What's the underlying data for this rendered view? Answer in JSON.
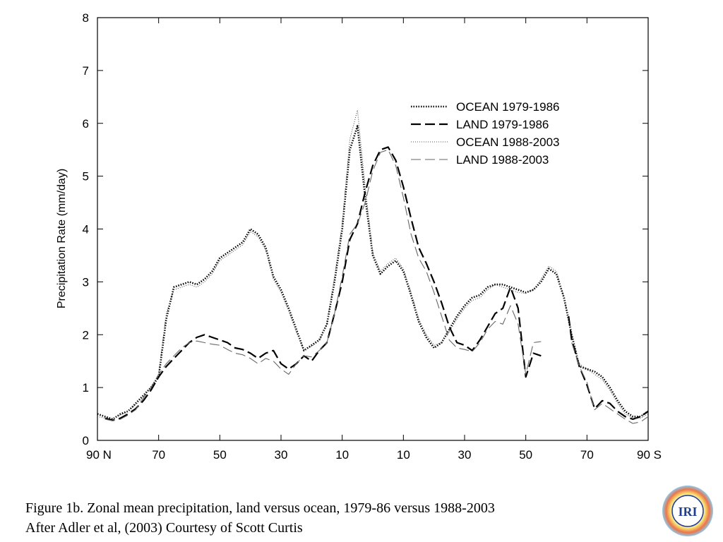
{
  "chart_data": {
    "type": "line",
    "title": "",
    "xlabel": "",
    "ylabel": "Precipitation Rate (mm/day)",
    "xlim": [
      -90,
      90
    ],
    "ylim": [
      0,
      8
    ],
    "x_ticks": [
      {
        "value": -90,
        "label": "90 N"
      },
      {
        "value": -70,
        "label": "70"
      },
      {
        "value": -50,
        "label": "50"
      },
      {
        "value": -30,
        "label": "30"
      },
      {
        "value": -10,
        "label": "10"
      },
      {
        "value": 10,
        "label": "10"
      },
      {
        "value": 30,
        "label": "30"
      },
      {
        "value": 50,
        "label": "50"
      },
      {
        "value": 70,
        "label": "70"
      },
      {
        "value": 90,
        "label": "90 S"
      }
    ],
    "y_ticks": [
      0,
      1,
      2,
      3,
      4,
      5,
      6,
      7,
      8
    ],
    "grid": false,
    "legend_position": "top-right",
    "series": [
      {
        "name": "OCEAN 1979-1986",
        "style": "dotted-bold",
        "points": [
          [
            -90,
            0.5
          ],
          [
            -87.5,
            0.45
          ],
          [
            -85,
            0.4
          ],
          [
            -82.5,
            0.5
          ],
          [
            -80,
            0.55
          ],
          [
            -77.5,
            0.7
          ],
          [
            -75,
            0.85
          ],
          [
            -72.5,
            1.0
          ],
          [
            -70,
            1.2
          ],
          [
            -67.5,
            2.3
          ],
          [
            -65,
            2.9
          ],
          [
            -62.5,
            2.95
          ],
          [
            -60,
            3.0
          ],
          [
            -57.5,
            2.95
          ],
          [
            -55,
            3.05
          ],
          [
            -52.5,
            3.2
          ],
          [
            -50,
            3.45
          ],
          [
            -47.5,
            3.55
          ],
          [
            -45,
            3.65
          ],
          [
            -42.5,
            3.75
          ],
          [
            -40,
            4.0
          ],
          [
            -37.5,
            3.9
          ],
          [
            -35,
            3.65
          ],
          [
            -32.5,
            3.1
          ],
          [
            -30,
            2.85
          ],
          [
            -27.5,
            2.5
          ],
          [
            -25,
            2.1
          ],
          [
            -22.5,
            1.7
          ],
          [
            -20,
            1.8
          ],
          [
            -17.5,
            1.9
          ],
          [
            -15,
            2.2
          ],
          [
            -12.5,
            3.0
          ],
          [
            -10,
            4.0
          ],
          [
            -7.5,
            5.5
          ],
          [
            -5,
            5.95
          ],
          [
            -2.5,
            4.6
          ],
          [
            0,
            3.5
          ],
          [
            2.5,
            3.15
          ],
          [
            5,
            3.3
          ],
          [
            7.5,
            3.4
          ],
          [
            10,
            3.2
          ],
          [
            12.5,
            2.75
          ],
          [
            15,
            2.25
          ],
          [
            17.5,
            1.95
          ],
          [
            20,
            1.75
          ],
          [
            22.5,
            1.85
          ],
          [
            25,
            2.1
          ],
          [
            27.5,
            2.35
          ],
          [
            30,
            2.55
          ],
          [
            32.5,
            2.7
          ],
          [
            35,
            2.75
          ],
          [
            37.5,
            2.9
          ],
          [
            40,
            2.95
          ],
          [
            42.5,
            2.95
          ],
          [
            45,
            2.9
          ],
          [
            47.5,
            2.85
          ],
          [
            50,
            2.8
          ],
          [
            52.5,
            2.85
          ],
          [
            55,
            3.0
          ],
          [
            57.5,
            3.25
          ],
          [
            60,
            3.15
          ],
          [
            62.5,
            2.7
          ],
          [
            65,
            2.0
          ],
          [
            67.5,
            1.4
          ],
          [
            70,
            1.35
          ],
          [
            72.5,
            1.3
          ],
          [
            75,
            1.2
          ],
          [
            77.5,
            1.0
          ],
          [
            80,
            0.75
          ],
          [
            82.5,
            0.55
          ],
          [
            85,
            0.45
          ],
          [
            87.5,
            0.45
          ],
          [
            90,
            0.55
          ]
        ]
      },
      {
        "name": "LAND 1979-1986",
        "style": "long-dash-bold",
        "points": [
          [
            -87.5,
            0.42
          ],
          [
            -85,
            0.38
          ],
          [
            -82.5,
            0.42
          ],
          [
            -80,
            0.5
          ],
          [
            -77.5,
            0.6
          ],
          [
            -75,
            0.75
          ],
          [
            -72.5,
            0.95
          ],
          [
            -70,
            1.2
          ],
          [
            -67.5,
            1.4
          ],
          [
            -65,
            1.55
          ],
          [
            -62.5,
            1.7
          ],
          [
            -60,
            1.85
          ],
          [
            -57.5,
            1.95
          ],
          [
            -55,
            2.0
          ],
          [
            -52.5,
            1.95
          ],
          [
            -50,
            1.9
          ],
          [
            -47.5,
            1.85
          ],
          [
            -45,
            1.75
          ],
          [
            -42.5,
            1.72
          ],
          [
            -40,
            1.65
          ],
          [
            -37.5,
            1.55
          ],
          [
            -35,
            1.65
          ],
          [
            -32.5,
            1.7
          ],
          [
            -30,
            1.45
          ],
          [
            -27.5,
            1.35
          ],
          [
            -25,
            1.45
          ],
          [
            -22.5,
            1.6
          ],
          [
            -20,
            1.5
          ],
          [
            -17.5,
            1.7
          ],
          [
            -15,
            1.85
          ],
          [
            -12.5,
            2.4
          ],
          [
            -10,
            3.0
          ],
          [
            -7.5,
            3.8
          ],
          [
            -5,
            4.1
          ],
          [
            -2.5,
            4.7
          ],
          [
            0,
            5.2
          ],
          [
            2.5,
            5.5
          ],
          [
            5,
            5.55
          ],
          [
            7.5,
            5.3
          ],
          [
            10,
            4.8
          ],
          [
            12.5,
            4.2
          ],
          [
            15,
            3.65
          ],
          [
            17.5,
            3.35
          ],
          [
            20,
            3.0
          ],
          [
            22.5,
            2.6
          ],
          [
            25,
            2.15
          ],
          [
            27.5,
            1.85
          ],
          [
            30,
            1.8
          ],
          [
            32.5,
            1.7
          ],
          [
            35,
            1.9
          ],
          [
            37.5,
            2.15
          ],
          [
            40,
            2.4
          ],
          [
            42.5,
            2.5
          ],
          [
            45,
            2.9
          ],
          [
            47.5,
            2.5
          ],
          [
            50,
            1.2
          ],
          [
            52.5,
            1.65
          ],
          [
            55,
            1.6
          ],
          [
            null,
            null
          ],
          [
            64,
            2.35
          ],
          [
            65,
            1.9
          ],
          [
            67.5,
            1.4
          ],
          [
            70,
            1.05
          ],
          [
            72.5,
            0.6
          ],
          [
            75,
            0.75
          ],
          [
            77.5,
            0.7
          ],
          [
            80,
            0.55
          ],
          [
            82.5,
            0.45
          ],
          [
            85,
            0.4
          ],
          [
            87.5,
            0.45
          ],
          [
            90,
            0.55
          ]
        ]
      },
      {
        "name": "OCEAN 1988-2003",
        "style": "dotted-light",
        "points": [
          [
            -90,
            0.45
          ],
          [
            -87.5,
            0.42
          ],
          [
            -85,
            0.4
          ],
          [
            -82.5,
            0.48
          ],
          [
            -80,
            0.55
          ],
          [
            -77.5,
            0.68
          ],
          [
            -75,
            0.82
          ],
          [
            -72.5,
            1.0
          ],
          [
            -70,
            1.25
          ],
          [
            -67.5,
            2.4
          ],
          [
            -65,
            2.85
          ],
          [
            -62.5,
            2.9
          ],
          [
            -60,
            2.95
          ],
          [
            -57.5,
            2.9
          ],
          [
            -55,
            3.0
          ],
          [
            -52.5,
            3.15
          ],
          [
            -50,
            3.4
          ],
          [
            -47.5,
            3.5
          ],
          [
            -45,
            3.6
          ],
          [
            -42.5,
            3.7
          ],
          [
            -40,
            3.95
          ],
          [
            -37.5,
            3.85
          ],
          [
            -35,
            3.6
          ],
          [
            -32.5,
            3.05
          ],
          [
            -30,
            2.8
          ],
          [
            -27.5,
            2.45
          ],
          [
            -25,
            2.05
          ],
          [
            -22.5,
            1.7
          ],
          [
            -20,
            1.78
          ],
          [
            -17.5,
            1.88
          ],
          [
            -15,
            2.2
          ],
          [
            -12.5,
            3.1
          ],
          [
            -10,
            4.1
          ],
          [
            -7.5,
            5.7
          ],
          [
            -5,
            6.25
          ],
          [
            -2.5,
            4.8
          ],
          [
            0,
            3.55
          ],
          [
            2.5,
            3.2
          ],
          [
            5,
            3.35
          ],
          [
            7.5,
            3.45
          ],
          [
            10,
            3.25
          ],
          [
            12.5,
            2.8
          ],
          [
            15,
            2.3
          ],
          [
            17.5,
            2.0
          ],
          [
            20,
            1.8
          ],
          [
            22.5,
            1.85
          ],
          [
            25,
            2.05
          ],
          [
            27.5,
            2.3
          ],
          [
            30,
            2.5
          ],
          [
            32.5,
            2.65
          ],
          [
            35,
            2.7
          ],
          [
            37.5,
            2.85
          ],
          [
            40,
            2.95
          ],
          [
            42.5,
            2.9
          ],
          [
            45,
            2.85
          ],
          [
            47.5,
            2.8
          ],
          [
            50,
            2.78
          ],
          [
            52.5,
            2.85
          ],
          [
            55,
            3.05
          ],
          [
            57.5,
            3.3
          ],
          [
            60,
            3.2
          ],
          [
            62.5,
            2.7
          ],
          [
            65,
            2.0
          ],
          [
            67.5,
            1.45
          ],
          [
            70,
            1.35
          ],
          [
            72.5,
            1.25
          ],
          [
            75,
            1.15
          ],
          [
            77.5,
            0.95
          ],
          [
            80,
            0.7
          ],
          [
            82.5,
            0.5
          ],
          [
            85,
            0.42
          ],
          [
            87.5,
            0.42
          ],
          [
            90,
            0.5
          ]
        ]
      },
      {
        "name": "LAND 1988-2003",
        "style": "long-dash-light",
        "points": [
          [
            -87.5,
            0.4
          ],
          [
            -85,
            0.37
          ],
          [
            -82.5,
            0.4
          ],
          [
            -80,
            0.48
          ],
          [
            -77.5,
            0.58
          ],
          [
            -75,
            0.8
          ],
          [
            -72.5,
            1.0
          ],
          [
            -70,
            1.25
          ],
          [
            -67.5,
            1.45
          ],
          [
            -65,
            1.6
          ],
          [
            -62.5,
            1.75
          ],
          [
            -60,
            1.85
          ],
          [
            -57.5,
            1.88
          ],
          [
            -55,
            1.85
          ],
          [
            -52.5,
            1.82
          ],
          [
            -50,
            1.8
          ],
          [
            -47.5,
            1.72
          ],
          [
            -45,
            1.65
          ],
          [
            -42.5,
            1.62
          ],
          [
            -40,
            1.55
          ],
          [
            -37.5,
            1.45
          ],
          [
            -35,
            1.55
          ],
          [
            -32.5,
            1.5
          ],
          [
            -30,
            1.35
          ],
          [
            -27.5,
            1.25
          ],
          [
            -25,
            1.45
          ],
          [
            -22.5,
            1.6
          ],
          [
            -20,
            1.58
          ],
          [
            -17.5,
            1.7
          ],
          [
            -15,
            1.85
          ],
          [
            -12.5,
            2.4
          ],
          [
            -10,
            3.1
          ],
          [
            -7.5,
            3.9
          ],
          [
            -5,
            4.1
          ],
          [
            -2.5,
            4.5
          ],
          [
            0,
            5.1
          ],
          [
            2.5,
            5.45
          ],
          [
            5,
            5.5
          ],
          [
            7.5,
            5.2
          ],
          [
            10,
            4.6
          ],
          [
            12.5,
            3.9
          ],
          [
            15,
            3.45
          ],
          [
            17.5,
            3.2
          ],
          [
            20,
            2.8
          ],
          [
            22.5,
            2.35
          ],
          [
            25,
            1.9
          ],
          [
            27.5,
            1.75
          ],
          [
            30,
            1.72
          ],
          [
            32.5,
            1.68
          ],
          [
            35,
            1.85
          ],
          [
            37.5,
            2.1
          ],
          [
            40,
            2.25
          ],
          [
            42.5,
            2.2
          ],
          [
            45,
            2.55
          ],
          [
            47.5,
            2.2
          ],
          [
            50,
            1.25
          ],
          [
            52.5,
            1.85
          ],
          [
            55,
            1.87
          ],
          [
            null,
            null
          ],
          [
            65,
            1.85
          ],
          [
            67.5,
            1.4
          ],
          [
            70,
            1.1
          ],
          [
            72.5,
            0.58
          ],
          [
            75,
            0.7
          ],
          [
            77.5,
            0.6
          ],
          [
            80,
            0.5
          ],
          [
            82.5,
            0.4
          ],
          [
            85,
            0.32
          ],
          [
            87.5,
            0.35
          ],
          [
            90,
            0.45
          ]
        ]
      }
    ]
  },
  "caption": {
    "line1": "Figure 1b.  Zonal mean precipitation, land versus ocean, 1979-86 versus 1988-2003",
    "line2": "After Adler et al, (2003) Courtesy of Scott Curtis"
  },
  "logo": {
    "text": "IRI"
  }
}
